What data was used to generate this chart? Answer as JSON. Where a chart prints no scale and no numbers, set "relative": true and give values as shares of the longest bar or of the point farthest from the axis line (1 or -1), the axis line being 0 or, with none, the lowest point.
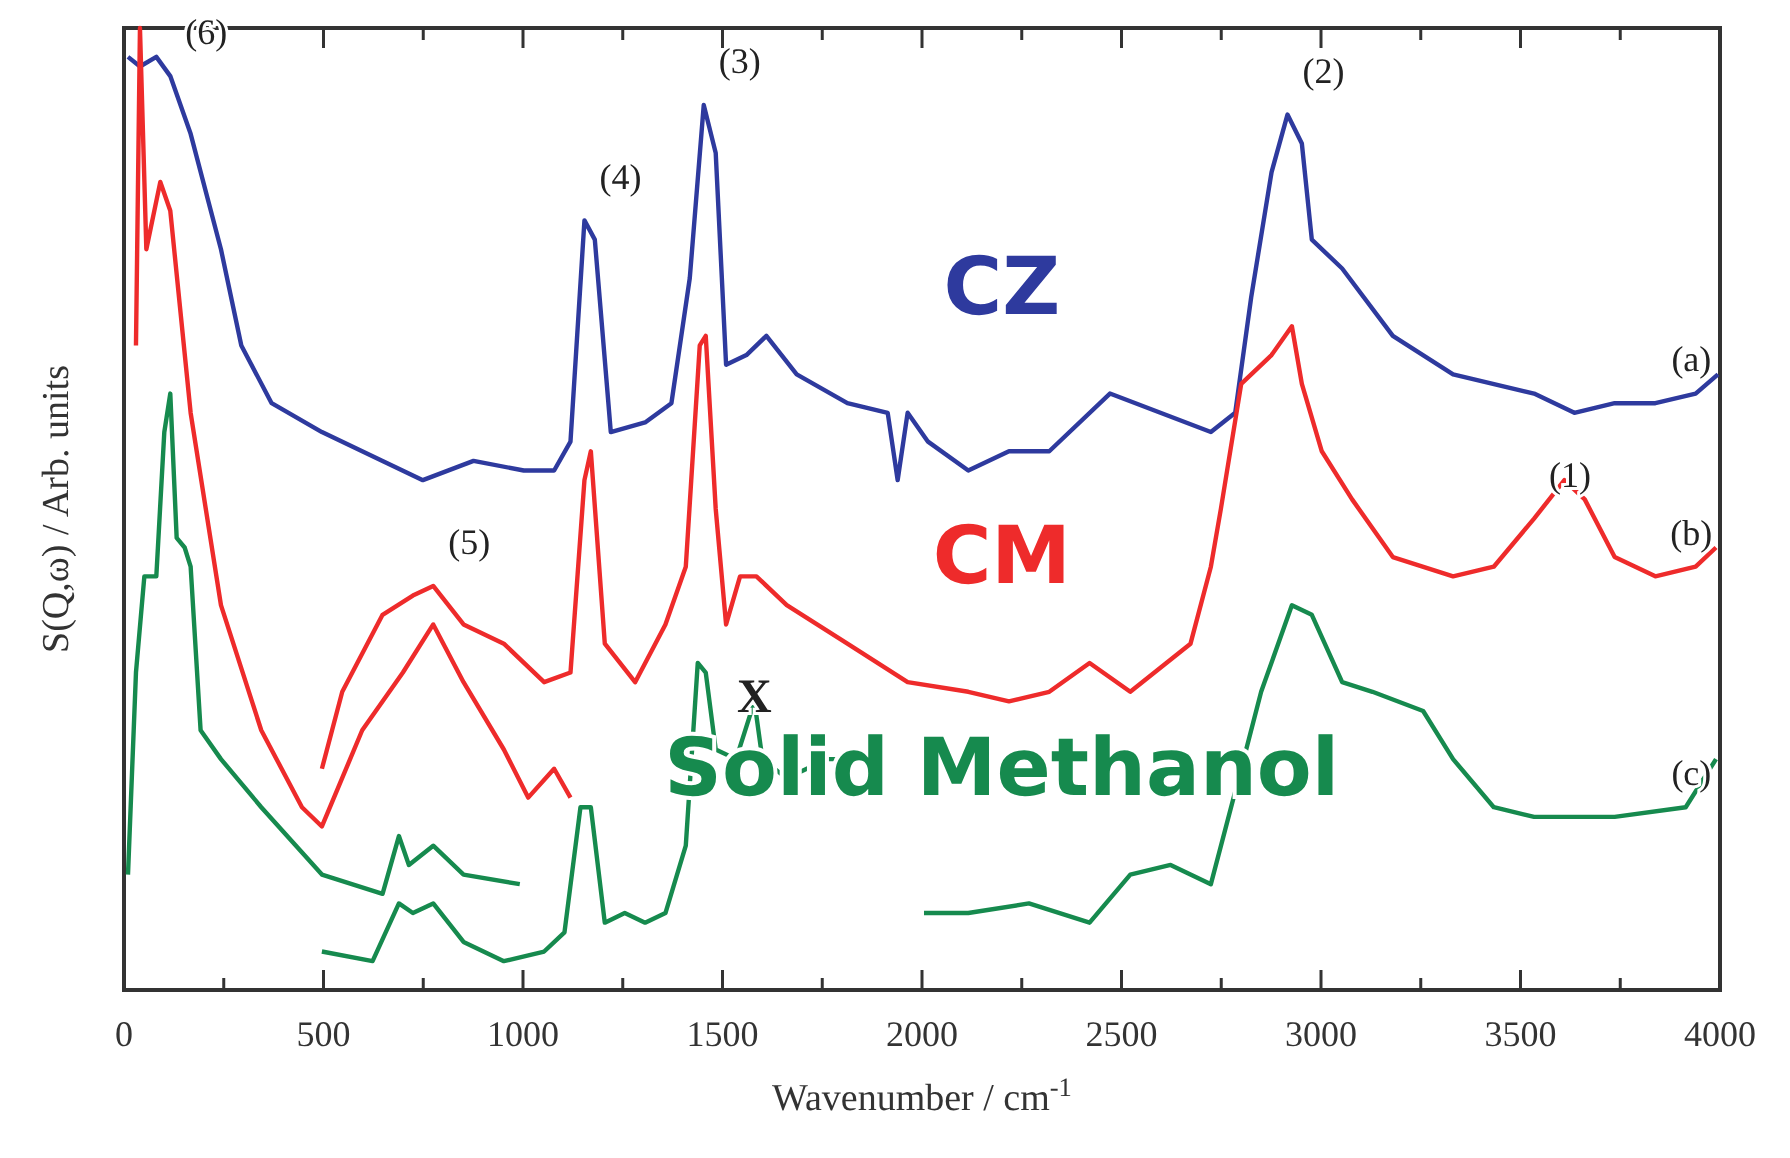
{
  "chart_data": {
    "type": "line",
    "relative": true,
    "xlabel": "Wavenumber / cm$^{-1}$",
    "ylabel": "S(Q,ω) / Arb. units",
    "xlim": [
      0,
      4000
    ],
    "xticks": [
      0,
      {
        "value": 250,
        "label": null
      },
      500,
      {
        "value": 750,
        "label": null
      },
      1000,
      {
        "value": 1250,
        "label": null
      },
      1500,
      {
        "value": 1750,
        "label": null
      },
      2000,
      {
        "value": 2250,
        "label": null
      },
      2500,
      {
        "value": 2750,
        "label": null
      },
      3000,
      {
        "value": 3250,
        "label": null
      },
      3500,
      {
        "value": 3750,
        "label": null
      },
      4000
    ],
    "grid": false,
    "legend": false,
    "marker": "none",
    "line_style": "solid",
    "series": [
      {
        "name": "CZ",
        "color": "#2e3a9e",
        "x": [
          10,
          40,
          81,
          116,
          167,
          243,
          294,
          370,
          496,
          648,
          749,
          876,
          1002,
          1078,
          1119,
          1154,
          1180,
          1220,
          1306,
          1372,
          1418,
          1453,
          1483,
          1509,
          1560,
          1610,
          1686,
          1813,
          1914,
          1939,
          1964,
          2015,
          2116,
          2218,
          2319,
          2471,
          2724,
          2785,
          2825,
          2876,
          2916,
          2952,
          2977,
          3053,
          3180,
          3331,
          3534,
          3635,
          3736,
          3838,
          3939,
          3995
        ],
        "values": [
          0.97,
          0.96,
          0.97,
          0.95,
          0.89,
          0.77,
          0.67,
          0.61,
          0.58,
          0.55,
          0.53,
          0.55,
          0.54,
          0.54,
          0.57,
          0.8,
          0.78,
          0.58,
          0.59,
          0.61,
          0.74,
          0.92,
          0.87,
          0.65,
          0.66,
          0.68,
          0.64,
          0.61,
          0.6,
          0.53,
          0.6,
          0.57,
          0.54,
          0.56,
          0.56,
          0.62,
          0.58,
          0.6,
          0.72,
          0.85,
          0.91,
          0.88,
          0.78,
          0.75,
          0.68,
          0.64,
          0.62,
          0.6,
          0.61,
          0.61,
          0.62,
          0.64
        ]
      },
      {
        "name": "CM",
        "color": "#ee2b2b",
        "x": [
          30,
          40,
          56,
          91,
          116,
          167,
          243,
          344,
          446,
          496,
          597,
          699,
          775,
          851,
          952,
          1013,
          1078,
          1119,
          null,
          496,
          547,
          648,
          724,
          775,
          851,
          952,
          1053,
          1119,
          1154,
          1170,
          1205,
          1281,
          1357,
          1408,
          1443,
          1458,
          1483,
          1509,
          1544,
          1585,
          1661,
          1813,
          1964,
          2116,
          2218,
          2319,
          2420,
          2522,
          2673,
          2724,
          2749,
          2800,
          2876,
          2927,
          2952,
          3002,
          3078,
          3180,
          3331,
          3433,
          3534,
          3610,
          3661,
          3736,
          3838,
          3939,
          3990
        ],
        "values": [
          0.67,
          1,
          0.77,
          0.84,
          0.81,
          0.6,
          0.4,
          0.27,
          0.19,
          0.17,
          0.27,
          0.33,
          0.38,
          0.32,
          0.25,
          0.2,
          0.23,
          0.2,
          null,
          0.23,
          0.31,
          0.39,
          0.41,
          0.42,
          0.38,
          0.36,
          0.32,
          0.33,
          0.53,
          0.56,
          0.36,
          0.32,
          0.38,
          0.44,
          0.67,
          0.68,
          0.5,
          0.38,
          0.43,
          0.43,
          0.4,
          0.36,
          0.32,
          0.31,
          0.3,
          0.31,
          0.34,
          0.31,
          0.36,
          0.44,
          0.5,
          0.63,
          0.66,
          0.69,
          0.63,
          0.56,
          0.51,
          0.45,
          0.43,
          0.44,
          0.49,
          0.53,
          0.51,
          0.45,
          0.43,
          0.44,
          0.46
        ]
      },
      {
        "name": "Solid Methanol",
        "color": "#168a4e",
        "x": [
          10,
          30,
          51,
          81,
          101,
          116,
          132,
          152,
          167,
          192,
          243,
          344,
          496,
          648,
          689,
          714,
          775,
          851,
          992,
          null,
          496,
          623,
          689,
          724,
          775,
          851,
          952,
          1053,
          1104,
          1144,
          1170,
          1205,
          1255,
          1306,
          1357,
          1408,
          1438,
          1458,
          1483,
          1534,
          1580,
          1600,
          1661,
          1762,
          1787,
          null,
          2005,
          2116,
          2268,
          2420,
          2522,
          2623,
          2724,
          2800,
          2850,
          2927,
          2977,
          3053,
          3129,
          3256,
          3331,
          3433,
          3534,
          3736,
          3914,
          3990
        ],
        "values": [
          0.12,
          0.33,
          0.43,
          0.43,
          0.58,
          0.62,
          0.47,
          0.46,
          0.44,
          0.27,
          0.24,
          0.19,
          0.12,
          0.1,
          0.16,
          0.13,
          0.15,
          0.12,
          0.11,
          null,
          0.04,
          0.03,
          0.09,
          0.08,
          0.09,
          0.05,
          0.03,
          0.04,
          0.06,
          0.19,
          0.19,
          0.07,
          0.08,
          0.07,
          0.08,
          0.15,
          0.34,
          0.33,
          0.25,
          0.24,
          0.3,
          0.24,
          0.22,
          0.24,
          0.24,
          null,
          0.08,
          0.08,
          0.09,
          0.07,
          0.12,
          0.13,
          0.11,
          0.23,
          0.31,
          0.4,
          0.39,
          0.32,
          0.31,
          0.29,
          0.24,
          0.19,
          0.18,
          0.18,
          0.19,
          0.24
        ]
      }
    ],
    "annotations": [
      {
        "text": "(6)",
        "x": 116,
        "y": 0.95
      },
      {
        "text": "(4)",
        "x": 1154,
        "y": 0.8
      },
      {
        "text": "(3)",
        "x": 1453,
        "y": 0.92
      },
      {
        "text": "(2)",
        "x": 2916,
        "y": 0.91
      },
      {
        "text": "(1)",
        "x": 3534,
        "y": 0.49
      },
      {
        "text": "(5)",
        "x": 775,
        "y": 0.42
      },
      {
        "text": "(a)",
        "x": 3838,
        "y": 0.61
      },
      {
        "text": "(b)",
        "x": 3838,
        "y": 0.43
      },
      {
        "text": "(c)",
        "x": 3838,
        "y": 0.18
      },
      {
        "text": "X",
        "x": 1580,
        "y": 0.3
      }
    ]
  }
}
